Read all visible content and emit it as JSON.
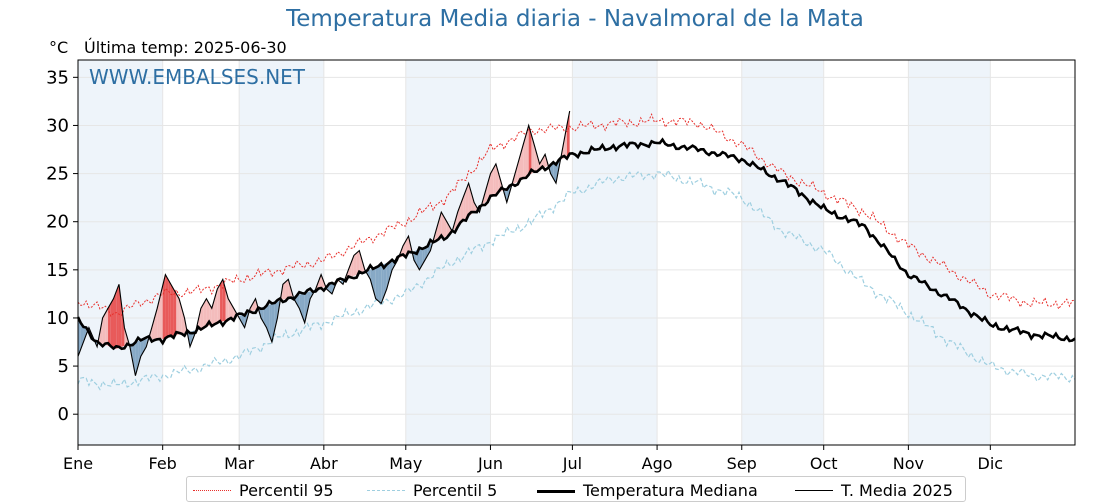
{
  "header": {
    "title": "Temperatura Media diaria - Navalmoral de la Mata",
    "unit": "°C",
    "last_temp": "Última temp: 2025-06-30"
  },
  "watermark": "WWW.EMBALSES.NET",
  "colors": {
    "p95": "#e8302c",
    "p5": "#9fcfe0",
    "median": "#000000",
    "current": "#000000",
    "above_fill": "#f4bcbc",
    "above_fill_strong": "#e85a5a",
    "below_fill": "#87a9c6",
    "band": "#eef4fa",
    "watermark": "#2e6fa3"
  },
  "legend": [
    {
      "key": "p95",
      "label": "Percentil 95"
    },
    {
      "key": "p5",
      "label": "Percentil 5"
    },
    {
      "key": "median",
      "label": "Temperatura Mediana"
    },
    {
      "key": "current",
      "label": "T. Media 2025"
    }
  ],
  "chart_data": {
    "type": "line",
    "title": "Temperatura Media diaria - Navalmoral de la Mata",
    "ylabel": "°C",
    "ylim": [
      -3.2,
      36.8
    ],
    "xlim": [
      1,
      366
    ],
    "yticks": [
      0,
      5,
      10,
      15,
      20,
      25,
      30,
      35
    ],
    "months": [
      {
        "label": "Ene",
        "day": 1
      },
      {
        "label": "Feb",
        "day": 32
      },
      {
        "label": "Mar",
        "day": 60
      },
      {
        "label": "Abr",
        "day": 91
      },
      {
        "label": "May",
        "day": 121
      },
      {
        "label": "Jun",
        "day": 152
      },
      {
        "label": "Jul",
        "day": 182
      },
      {
        "label": "Ago",
        "day": 213
      },
      {
        "label": "Sep",
        "day": 244
      },
      {
        "label": "Oct",
        "day": 274
      },
      {
        "label": "Nov",
        "day": 305
      },
      {
        "label": "Dic",
        "day": 335
      }
    ],
    "grid": true,
    "legend_position": "bottom",
    "series": [
      {
        "name": "Percentil 95",
        "key": "p95",
        "style": "dotted",
        "points": [
          [
            1,
            11.8
          ],
          [
            15,
            10.5
          ],
          [
            32,
            12.5
          ],
          [
            45,
            12.8
          ],
          [
            60,
            14
          ],
          [
            75,
            15
          ],
          [
            91,
            16
          ],
          [
            106,
            18
          ],
          [
            121,
            20
          ],
          [
            136,
            22.5
          ],
          [
            152,
            27.5
          ],
          [
            167,
            29.5
          ],
          [
            182,
            29.8
          ],
          [
            197,
            30.2
          ],
          [
            213,
            30.5
          ],
          [
            228,
            30.3
          ],
          [
            244,
            28
          ],
          [
            259,
            25
          ],
          [
            274,
            23
          ],
          [
            289,
            21
          ],
          [
            305,
            17.5
          ],
          [
            320,
            15
          ],
          [
            335,
            12.5
          ],
          [
            350,
            11.5
          ],
          [
            366,
            11.5
          ]
        ]
      },
      {
        "name": "Percentil 5",
        "key": "p5",
        "style": "dashed",
        "points": [
          [
            1,
            3.5
          ],
          [
            15,
            3
          ],
          [
            32,
            4
          ],
          [
            45,
            4.8
          ],
          [
            60,
            6
          ],
          [
            75,
            8
          ],
          [
            91,
            9.5
          ],
          [
            106,
            11
          ],
          [
            121,
            12.5
          ],
          [
            136,
            15.5
          ],
          [
            152,
            18
          ],
          [
            167,
            20
          ],
          [
            182,
            23
          ],
          [
            197,
            24.5
          ],
          [
            213,
            25
          ],
          [
            228,
            24
          ],
          [
            244,
            22.5
          ],
          [
            259,
            19
          ],
          [
            274,
            17
          ],
          [
            289,
            13.5
          ],
          [
            305,
            10.5
          ],
          [
            320,
            7.5
          ],
          [
            335,
            5
          ],
          [
            350,
            4
          ],
          [
            366,
            3.8
          ]
        ]
      },
      {
        "name": "Temperatura Mediana",
        "key": "median",
        "style": "solid-thick",
        "points": [
          [
            1,
            9.8
          ],
          [
            8,
            7.5
          ],
          [
            15,
            6.8
          ],
          [
            25,
            7.8
          ],
          [
            32,
            7.8
          ],
          [
            45,
            8.8
          ],
          [
            60,
            10.2
          ],
          [
            75,
            11.8
          ],
          [
            91,
            13.2
          ],
          [
            106,
            14.8
          ],
          [
            121,
            16.5
          ],
          [
            136,
            18.5
          ],
          [
            152,
            22.5
          ],
          [
            167,
            25
          ],
          [
            182,
            27
          ],
          [
            197,
            27.8
          ],
          [
            213,
            28.2
          ],
          [
            228,
            27.5
          ],
          [
            244,
            26.5
          ],
          [
            259,
            24.2
          ],
          [
            274,
            21.3
          ],
          [
            289,
            19.5
          ],
          [
            305,
            14.5
          ],
          [
            320,
            12
          ],
          [
            335,
            9.3
          ],
          [
            350,
            8.3
          ],
          [
            366,
            7.8
          ]
        ]
      },
      {
        "name": "T. Media 2025",
        "key": "current",
        "style": "solid-thin",
        "points": [
          [
            1,
            6
          ],
          [
            5,
            9
          ],
          [
            8,
            7
          ],
          [
            10,
            10
          ],
          [
            12,
            11
          ],
          [
            14,
            12
          ],
          [
            16,
            13.5
          ],
          [
            18,
            9
          ],
          [
            20,
            7
          ],
          [
            22,
            4
          ],
          [
            24,
            6
          ],
          [
            26,
            7
          ],
          [
            28,
            9
          ],
          [
            30,
            11
          ],
          [
            33,
            14.5
          ],
          [
            36,
            13
          ],
          [
            38,
            12
          ],
          [
            40,
            10
          ],
          [
            42,
            7
          ],
          [
            44,
            8.5
          ],
          [
            46,
            11
          ],
          [
            48,
            12
          ],
          [
            50,
            11
          ],
          [
            52,
            13
          ],
          [
            54,
            14
          ],
          [
            56,
            12
          ],
          [
            58,
            11
          ],
          [
            60,
            10
          ],
          [
            62,
            9
          ],
          [
            64,
            11
          ],
          [
            66,
            12
          ],
          [
            68,
            10
          ],
          [
            70,
            9
          ],
          [
            72,
            7.5
          ],
          [
            74,
            10
          ],
          [
            76,
            13.5
          ],
          [
            78,
            14
          ],
          [
            80,
            12
          ],
          [
            82,
            11
          ],
          [
            84,
            9.5
          ],
          [
            86,
            12
          ],
          [
            88,
            13
          ],
          [
            90,
            14.5
          ],
          [
            92,
            13
          ],
          [
            94,
            12.5
          ],
          [
            96,
            14
          ],
          [
            98,
            13.5
          ],
          [
            100,
            15
          ],
          [
            102,
            16.5
          ],
          [
            104,
            17
          ],
          [
            106,
            15
          ],
          [
            108,
            14
          ],
          [
            110,
            12
          ],
          [
            112,
            11.5
          ],
          [
            114,
            13
          ],
          [
            116,
            15
          ],
          [
            118,
            16
          ],
          [
            120,
            17.5
          ],
          [
            122,
            18.5
          ],
          [
            124,
            16
          ],
          [
            126,
            15
          ],
          [
            128,
            16
          ],
          [
            130,
            17
          ],
          [
            132,
            19
          ],
          [
            134,
            21
          ],
          [
            136,
            20
          ],
          [
            138,
            19
          ],
          [
            140,
            21
          ],
          [
            142,
            22.5
          ],
          [
            144,
            24
          ],
          [
            146,
            22
          ],
          [
            148,
            21
          ],
          [
            150,
            23
          ],
          [
            152,
            25
          ],
          [
            154,
            26
          ],
          [
            156,
            24
          ],
          [
            158,
            22
          ],
          [
            160,
            24
          ],
          [
            162,
            26
          ],
          [
            164,
            28
          ],
          [
            166,
            30
          ],
          [
            168,
            28
          ],
          [
            170,
            26
          ],
          [
            172,
            27
          ],
          [
            174,
            25
          ],
          [
            176,
            24
          ],
          [
            178,
            27
          ],
          [
            180,
            30
          ],
          [
            181,
            31.5
          ]
        ]
      }
    ]
  }
}
